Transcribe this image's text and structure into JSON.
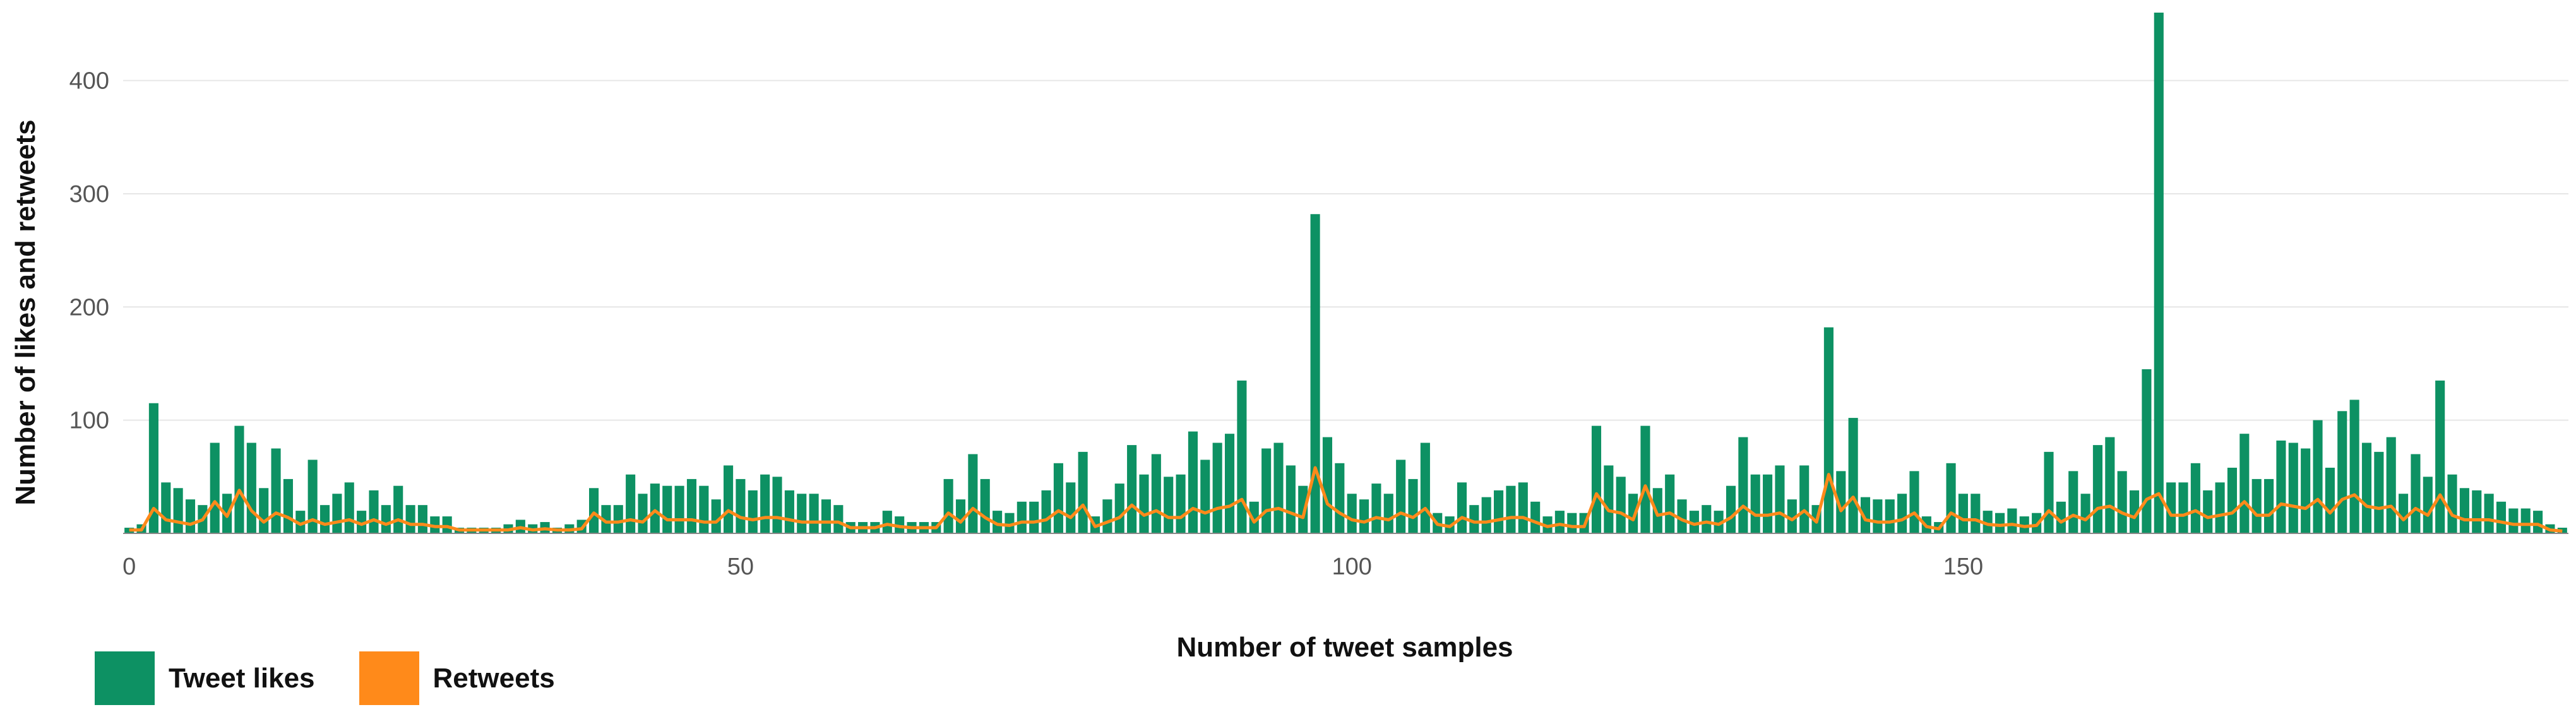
{
  "chart_data": {
    "type": "bar",
    "title": "",
    "xlabel": "Number of tweet samples",
    "ylabel": "Number of likes and retweets",
    "xlim": [
      -0.5,
      199.5
    ],
    "ylim": [
      0,
      460
    ],
    "xticks": [
      0,
      50,
      100,
      150
    ],
    "yticks": [
      100,
      200,
      300,
      400
    ],
    "grid": true,
    "legend_placement": "bottom-left",
    "colors": {
      "likes": "#0d9163",
      "retweets": "#ff8a1a"
    },
    "series": [
      {
        "name": "Tweet likes",
        "kind": "bar",
        "values": [
          5,
          8,
          115,
          45,
          40,
          30,
          25,
          80,
          35,
          95,
          80,
          40,
          75,
          48,
          20,
          65,
          25,
          35,
          45,
          20,
          38,
          25,
          42,
          25,
          25,
          15,
          15,
          5,
          5,
          5,
          5,
          8,
          12,
          8,
          10,
          5,
          8,
          12,
          40,
          25,
          25,
          52,
          35,
          44,
          42,
          42,
          48,
          42,
          30,
          60,
          48,
          38,
          52,
          50,
          38,
          35,
          35,
          30,
          25,
          10,
          10,
          10,
          20,
          15,
          10,
          10,
          10,
          48,
          30,
          70,
          48,
          20,
          18,
          28,
          28,
          38,
          62,
          45,
          72,
          15,
          30,
          44,
          78,
          52,
          70,
          50,
          52,
          90,
          65,
          80,
          88,
          135,
          28,
          75,
          80,
          60,
          42,
          282,
          85,
          62,
          35,
          30,
          44,
          35,
          65,
          48,
          80,
          18,
          15,
          45,
          25,
          32,
          38,
          42,
          45,
          28,
          15,
          20,
          18,
          18,
          95,
          60,
          50,
          35,
          95,
          40,
          52,
          30,
          20,
          25,
          20,
          42,
          85,
          52,
          52,
          60,
          30,
          60,
          25,
          182,
          55,
          102,
          32,
          30,
          30,
          35,
          55,
          15,
          10,
          62,
          35,
          35,
          20,
          18,
          22,
          15,
          18,
          72,
          28,
          55,
          35,
          78,
          85,
          55,
          38,
          145,
          460,
          45,
          45,
          62,
          38,
          45,
          58,
          88,
          48,
          48,
          82,
          80,
          75,
          100,
          58,
          108,
          118,
          80,
          72,
          85,
          35,
          70,
          50,
          135,
          52,
          40,
          38,
          35,
          28,
          22,
          22,
          20,
          8,
          5
        ],
        "note": "values estimated from chart"
      },
      {
        "name": "Retweets",
        "kind": "line",
        "values": [
          3,
          3,
          22,
          12,
          10,
          8,
          12,
          28,
          15,
          38,
          20,
          10,
          18,
          14,
          8,
          12,
          8,
          10,
          12,
          8,
          12,
          8,
          12,
          8,
          8,
          6,
          6,
          3,
          3,
          3,
          3,
          3,
          5,
          3,
          4,
          3,
          3,
          4,
          18,
          10,
          10,
          12,
          10,
          20,
          12,
          12,
          12,
          10,
          10,
          20,
          14,
          12,
          14,
          14,
          12,
          10,
          10,
          10,
          10,
          5,
          5,
          5,
          8,
          6,
          5,
          5,
          5,
          18,
          10,
          22,
          14,
          8,
          7,
          10,
          10,
          12,
          20,
          14,
          25,
          6,
          10,
          14,
          25,
          16,
          20,
          14,
          14,
          22,
          18,
          22,
          24,
          30,
          10,
          20,
          22,
          18,
          14,
          58,
          26,
          18,
          12,
          10,
          14,
          12,
          18,
          14,
          22,
          8,
          6,
          14,
          10,
          10,
          12,
          14,
          14,
          10,
          6,
          8,
          6,
          6,
          35,
          20,
          18,
          12,
          42,
          16,
          18,
          12,
          8,
          10,
          8,
          14,
          24,
          16,
          16,
          18,
          12,
          20,
          10,
          52,
          20,
          32,
          12,
          10,
          10,
          12,
          18,
          6,
          4,
          18,
          12,
          12,
          8,
          7,
          8,
          6,
          7,
          20,
          10,
          16,
          12,
          22,
          24,
          18,
          14,
          30,
          35,
          16,
          16,
          20,
          14,
          16,
          18,
          28,
          16,
          16,
          26,
          24,
          22,
          30,
          18,
          30,
          34,
          24,
          22,
          24,
          12,
          22,
          16,
          34,
          16,
          12,
          12,
          12,
          10,
          8,
          8,
          8,
          3,
          2
        ]
      }
    ]
  }
}
